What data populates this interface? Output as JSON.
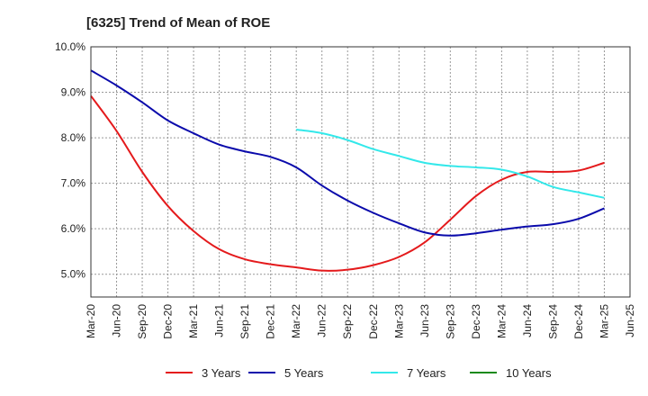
{
  "chart_data": {
    "type": "line",
    "title": "[6325]  Trend of Mean of ROE",
    "xlabel": "",
    "ylabel": "",
    "ylim": [
      4.5,
      10.0
    ],
    "yticks": [
      5.0,
      6.0,
      7.0,
      8.0,
      9.0,
      10.0
    ],
    "ytick_labels": [
      "5.0%",
      "6.0%",
      "7.0%",
      "8.0%",
      "9.0%",
      "10.0%"
    ],
    "x_tick_labels": [
      "Mar-20",
      "Jun-20",
      "Sep-20",
      "Dec-20",
      "Mar-21",
      "Jun-21",
      "Sep-21",
      "Dec-21",
      "Mar-22",
      "Jun-22",
      "Sep-22",
      "Dec-22",
      "Mar-23",
      "Jun-23",
      "Sep-23",
      "Dec-23",
      "Mar-24",
      "Jun-24",
      "Sep-24",
      "Dec-24",
      "Mar-25",
      "Jun-25"
    ],
    "grid": true,
    "legend_position": "bottom",
    "series": [
      {
        "name": "3 Years",
        "color": "#e41a1c",
        "values": [
          8.92,
          8.15,
          7.25,
          6.5,
          5.95,
          5.55,
          5.33,
          5.22,
          5.15,
          5.08,
          5.1,
          5.2,
          5.38,
          5.7,
          6.2,
          6.72,
          7.08,
          7.25,
          7.25,
          7.28,
          7.45,
          null
        ]
      },
      {
        "name": "5 Years",
        "color": "#0a0aab",
        "values": [
          9.48,
          9.15,
          8.78,
          8.38,
          8.1,
          7.85,
          7.7,
          7.58,
          7.35,
          6.95,
          6.62,
          6.35,
          6.12,
          5.92,
          5.85,
          5.9,
          5.98,
          6.05,
          6.1,
          6.22,
          6.45,
          null
        ]
      },
      {
        "name": "7 Years",
        "color": "#33e8ea",
        "values": [
          null,
          null,
          null,
          null,
          null,
          null,
          null,
          null,
          8.18,
          8.1,
          7.95,
          7.75,
          7.6,
          7.45,
          7.38,
          7.35,
          7.3,
          7.15,
          6.92,
          6.8,
          6.68,
          null
        ]
      },
      {
        "name": "10 Years",
        "color": "#1a8a1a",
        "values": [
          null,
          null,
          null,
          null,
          null,
          null,
          null,
          null,
          null,
          null,
          null,
          null,
          null,
          null,
          null,
          null,
          null,
          null,
          null,
          null,
          null,
          null
        ]
      }
    ]
  }
}
